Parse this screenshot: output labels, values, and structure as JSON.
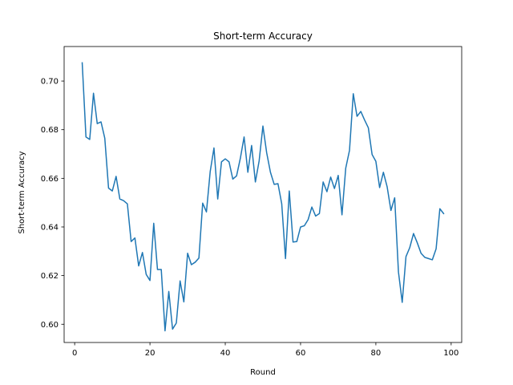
{
  "chart_data": {
    "type": "line",
    "title": "Short-term Accuracy",
    "xlabel": "Round",
    "ylabel": "Short-term Accuracy",
    "xlim": [
      -2.8,
      102.8
    ],
    "ylim": [
      0.5925,
      0.7142
    ],
    "xticks": [
      0,
      20,
      40,
      60,
      80,
      100
    ],
    "xtick_labels": [
      "0",
      "20",
      "40",
      "60",
      "80",
      "100"
    ],
    "yticks": [
      0.6,
      0.62,
      0.64,
      0.66,
      0.68,
      0.7
    ],
    "ytick_labels": [
      "0.60",
      "0.62",
      "0.64",
      "0.66",
      "0.68",
      "0.70"
    ],
    "grid": false,
    "legend": "none",
    "color": "#1f77b4",
    "series": [
      {
        "x": [
          2,
          3,
          4,
          5,
          6,
          7,
          8,
          9,
          10,
          11,
          12,
          13,
          14,
          15,
          16,
          17,
          18,
          19,
          20,
          21,
          22,
          23,
          24,
          25,
          26,
          27,
          28,
          29,
          30,
          31,
          32,
          33,
          34,
          35,
          36,
          37,
          38,
          39,
          40,
          41,
          42,
          43,
          44,
          45,
          46,
          47,
          48,
          49,
          50,
          51,
          52,
          53,
          54,
          55,
          56,
          57,
          58,
          59,
          60,
          61,
          62,
          63,
          64,
          65,
          66,
          67,
          68,
          69,
          70,
          71,
          72,
          73,
          74,
          75,
          76,
          77,
          78,
          79,
          80,
          81,
          82,
          83,
          84,
          85,
          86,
          87,
          88,
          89,
          90,
          91,
          92,
          93,
          94,
          95,
          96,
          97,
          98
        ],
        "y": [
          0.7075,
          0.677,
          0.676,
          0.695,
          0.6825,
          0.6832,
          0.6765,
          0.656,
          0.6548,
          0.6608,
          0.6515,
          0.6508,
          0.6495,
          0.634,
          0.6355,
          0.624,
          0.6295,
          0.6205,
          0.618,
          0.6415,
          0.6225,
          0.6225,
          0.5973,
          0.6135,
          0.598,
          0.6005,
          0.6178,
          0.6092,
          0.6292,
          0.6245,
          0.6255,
          0.6272,
          0.6498,
          0.6462,
          0.6628,
          0.6725,
          0.6515,
          0.6668,
          0.668,
          0.6668,
          0.6597,
          0.661,
          0.6682,
          0.677,
          0.6625,
          0.6735,
          0.6585,
          0.6672,
          0.6815,
          0.6705,
          0.6625,
          0.6575,
          0.6578,
          0.6495,
          0.627,
          0.6548,
          0.6338,
          0.634,
          0.64,
          0.6405,
          0.643,
          0.6482,
          0.6445,
          0.6455,
          0.6585,
          0.6545,
          0.6605,
          0.6558,
          0.6612,
          0.645,
          0.6642,
          0.6715,
          0.6948,
          0.6855,
          0.6875,
          0.684,
          0.6808,
          0.6698,
          0.667,
          0.6562,
          0.6625,
          0.6565,
          0.6468,
          0.652,
          0.6215,
          0.609,
          0.6278,
          0.6315,
          0.6373,
          0.6335,
          0.6292,
          0.6275,
          0.627,
          0.6265,
          0.631,
          0.6475,
          0.6455
        ]
      }
    ]
  }
}
